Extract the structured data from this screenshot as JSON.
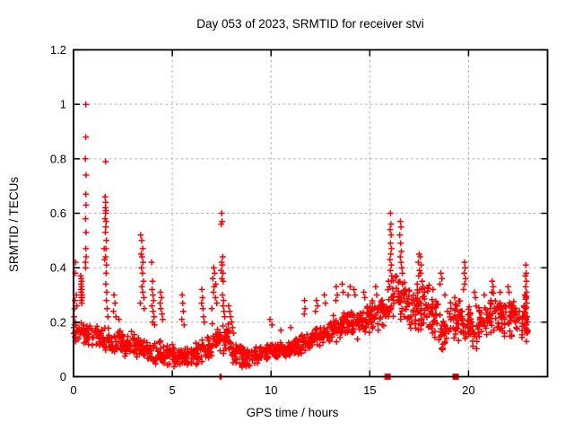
{
  "window": {
    "background": "#ffffff"
  },
  "chart_data": {
    "type": "scatter",
    "title": "Day 053 of 2023, SRMTID for receiver stvi",
    "xlabel": "GPS time / hours",
    "ylabel": "SRMTID / TECUs",
    "xlim": [
      0,
      24
    ],
    "ylim": [
      0,
      1.2
    ],
    "xticks": [
      0,
      5,
      10,
      15,
      20
    ],
    "xtick_labels": [
      "0",
      "5",
      "10",
      "15",
      "20"
    ],
    "yticks": [
      0,
      0.2,
      0.4,
      0.6,
      0.8,
      1,
      1.2
    ],
    "ytick_labels": [
      "0",
      "0.2",
      "0.4",
      "0.6",
      "0.8",
      "1",
      "1.2"
    ],
    "grid": true,
    "legend": false,
    "marker": "plus",
    "colors": {
      "marker": "#ff0000",
      "grid": "#aaaaaa",
      "axis": "#000000",
      "text": "#000000"
    },
    "feature_points": [
      [
        0.62,
        1.0
      ],
      [
        0.62,
        0.88
      ],
      [
        0.6,
        0.8
      ],
      [
        0.63,
        0.74
      ],
      [
        0.62,
        0.67
      ],
      [
        0.63,
        0.63
      ],
      [
        0.61,
        0.58
      ],
      [
        0.63,
        0.53
      ],
      [
        0.62,
        0.47
      ],
      [
        0.64,
        0.44
      ],
      [
        0.6,
        0.42
      ],
      [
        0.61,
        0.4
      ],
      [
        0.1,
        0.42
      ],
      [
        0.09,
        0.38
      ],
      [
        0.14,
        0.3
      ],
      [
        0.07,
        0.28
      ],
      [
        0.05,
        0.25
      ],
      [
        0.17,
        0.26
      ],
      [
        0.03,
        0.22
      ],
      [
        0.02,
        0.18
      ],
      [
        0.04,
        0.16
      ],
      [
        0.36,
        0.37
      ],
      [
        0.39,
        0.36
      ],
      [
        0.41,
        0.35
      ],
      [
        0.38,
        0.34
      ],
      [
        0.4,
        0.33
      ],
      [
        0.42,
        0.32
      ],
      [
        0.37,
        0.32
      ],
      [
        0.39,
        0.31
      ],
      [
        0.41,
        0.3
      ],
      [
        0.43,
        0.3
      ],
      [
        0.38,
        0.29
      ],
      [
        0.4,
        0.28
      ],
      [
        0.42,
        0.27
      ],
      [
        0.44,
        0.29
      ],
      [
        1.62,
        0.79
      ],
      [
        1.6,
        0.66
      ],
      [
        1.63,
        0.64
      ],
      [
        1.61,
        0.62
      ],
      [
        1.64,
        0.61
      ],
      [
        1.62,
        0.6
      ],
      [
        1.6,
        0.58
      ],
      [
        1.65,
        0.57
      ],
      [
        1.63,
        0.55
      ],
      [
        1.61,
        0.53
      ],
      [
        1.66,
        0.5
      ],
      [
        1.64,
        0.47
      ],
      [
        1.62,
        0.44
      ],
      [
        1.67,
        0.41
      ],
      [
        1.65,
        0.38
      ],
      [
        1.63,
        0.34
      ],
      [
        1.68,
        0.31
      ],
      [
        1.66,
        0.28
      ],
      [
        1.7,
        0.25
      ],
      [
        1.74,
        0.22
      ],
      [
        1.55,
        0.47
      ],
      [
        1.57,
        0.43
      ],
      [
        2.05,
        0.3
      ],
      [
        2.1,
        0.27
      ],
      [
        2.02,
        0.24
      ],
      [
        2.15,
        0.22
      ],
      [
        2.3,
        0.21
      ],
      [
        3.4,
        0.52
      ],
      [
        3.45,
        0.5
      ],
      [
        3.5,
        0.47
      ],
      [
        3.42,
        0.45
      ],
      [
        3.47,
        0.44
      ],
      [
        3.52,
        0.42
      ],
      [
        3.44,
        0.4
      ],
      [
        3.49,
        0.38
      ],
      [
        3.54,
        0.35
      ],
      [
        3.46,
        0.33
      ],
      [
        3.51,
        0.31
      ],
      [
        3.56,
        0.29
      ],
      [
        3.38,
        0.27
      ],
      [
        3.58,
        0.25
      ],
      [
        3.95,
        0.42
      ],
      [
        4.0,
        0.35
      ],
      [
        3.98,
        0.32
      ],
      [
        4.02,
        0.3
      ],
      [
        4.05,
        0.28
      ],
      [
        3.97,
        0.26
      ],
      [
        4.03,
        0.24
      ],
      [
        4.08,
        0.22
      ],
      [
        4.0,
        0.2
      ],
      [
        4.1,
        0.19
      ],
      [
        4.4,
        0.31
      ],
      [
        4.45,
        0.29
      ],
      [
        4.38,
        0.27
      ],
      [
        4.42,
        0.25
      ],
      [
        4.48,
        0.23
      ],
      [
        4.52,
        0.21
      ],
      [
        5.5,
        0.3
      ],
      [
        5.53,
        0.27
      ],
      [
        5.56,
        0.24
      ],
      [
        5.48,
        0.21
      ],
      [
        5.6,
        0.19
      ],
      [
        6.5,
        0.32
      ],
      [
        6.53,
        0.29
      ],
      [
        6.48,
        0.27
      ],
      [
        6.55,
        0.25
      ],
      [
        6.58,
        0.22
      ],
      [
        6.62,
        0.2
      ],
      [
        7.1,
        0.4
      ],
      [
        7.15,
        0.38
      ],
      [
        7.05,
        0.36
      ],
      [
        7.2,
        0.34
      ],
      [
        7.12,
        0.33
      ],
      [
        7.08,
        0.31
      ],
      [
        7.18,
        0.29
      ],
      [
        7.25,
        0.27
      ],
      [
        7.0,
        0.25
      ],
      [
        7.5,
        0.6
      ],
      [
        7.52,
        0.57
      ],
      [
        7.48,
        0.56
      ],
      [
        7.55,
        0.44
      ],
      [
        7.5,
        0.42
      ],
      [
        7.53,
        0.41
      ],
      [
        7.47,
        0.39
      ],
      [
        7.56,
        0.38
      ],
      [
        7.51,
        0.36
      ],
      [
        7.58,
        0.35
      ],
      [
        7.54,
        0.3
      ],
      [
        7.6,
        0.28
      ],
      [
        7.57,
        0.26
      ],
      [
        7.62,
        0.24
      ],
      [
        7.65,
        0.22
      ],
      [
        7.42,
        0.0
      ],
      [
        7.47,
        0.0
      ],
      [
        7.85,
        0.26
      ],
      [
        7.9,
        0.24
      ],
      [
        7.95,
        0.22
      ],
      [
        8.0,
        0.2
      ],
      [
        8.05,
        0.18
      ],
      [
        8.1,
        0.16
      ],
      [
        9.95,
        0.21
      ],
      [
        10.05,
        0.19
      ],
      [
        10.5,
        0.17
      ],
      [
        11.0,
        0.18
      ],
      [
        11.7,
        0.28
      ],
      [
        11.72,
        0.25
      ],
      [
        11.68,
        0.23
      ],
      [
        12.3,
        0.28
      ],
      [
        12.35,
        0.26
      ],
      [
        12.25,
        0.24
      ],
      [
        12.7,
        0.3
      ],
      [
        12.75,
        0.27
      ],
      [
        13.3,
        0.33
      ],
      [
        13.35,
        0.3
      ],
      [
        13.28,
        0.28
      ],
      [
        13.6,
        0.34
      ],
      [
        13.65,
        0.31
      ],
      [
        13.9,
        0.3
      ],
      [
        14.0,
        0.33
      ],
      [
        14.2,
        0.32
      ],
      [
        14.25,
        0.3
      ],
      [
        14.7,
        0.31
      ],
      [
        14.75,
        0.29
      ],
      [
        15.3,
        0.33
      ],
      [
        15.35,
        0.3
      ],
      [
        16.05,
        0.6
      ],
      [
        16.07,
        0.56
      ],
      [
        16.03,
        0.54
      ],
      [
        16.08,
        0.52
      ],
      [
        16.05,
        0.49
      ],
      [
        16.1,
        0.47
      ],
      [
        16.06,
        0.45
      ],
      [
        16.02,
        0.43
      ],
      [
        16.09,
        0.41
      ],
      [
        16.04,
        0.39
      ],
      [
        16.11,
        0.37
      ],
      [
        15.95,
        0.35
      ],
      [
        16.0,
        0.33
      ],
      [
        16.55,
        0.57
      ],
      [
        16.58,
        0.55
      ],
      [
        16.52,
        0.52
      ],
      [
        16.56,
        0.49
      ],
      [
        16.6,
        0.46
      ],
      [
        16.54,
        0.44
      ],
      [
        16.58,
        0.42
      ],
      [
        16.62,
        0.4
      ],
      [
        16.65,
        0.38
      ],
      [
        17.5,
        0.45
      ],
      [
        17.55,
        0.44
      ],
      [
        17.45,
        0.42
      ],
      [
        17.6,
        0.41
      ],
      [
        17.52,
        0.39
      ],
      [
        17.58,
        0.38
      ],
      [
        17.48,
        0.37
      ],
      [
        17.65,
        0.35
      ],
      [
        17.7,
        0.33
      ],
      [
        17.4,
        0.34
      ],
      [
        18.2,
        0.32
      ],
      [
        18.6,
        0.38
      ],
      [
        18.65,
        0.36
      ],
      [
        18.55,
        0.34
      ],
      [
        18.8,
        0.3
      ],
      [
        19.3,
        0.29
      ],
      [
        19.8,
        0.42
      ],
      [
        19.82,
        0.4
      ],
      [
        19.78,
        0.38
      ],
      [
        19.85,
        0.36
      ],
      [
        19.8,
        0.34
      ],
      [
        19.75,
        0.32
      ],
      [
        20.3,
        0.31
      ],
      [
        20.35,
        0.29
      ],
      [
        20.8,
        0.3
      ],
      [
        21.2,
        0.35
      ],
      [
        21.25,
        0.33
      ],
      [
        21.18,
        0.31
      ],
      [
        21.6,
        0.31
      ],
      [
        22.0,
        0.33
      ],
      [
        22.05,
        0.31
      ],
      [
        22.9,
        0.41
      ],
      [
        22.92,
        0.38
      ],
      [
        22.88,
        0.37
      ],
      [
        22.93,
        0.35
      ],
      [
        22.89,
        0.33
      ],
      [
        22.94,
        0.31
      ],
      [
        22.91,
        0.29
      ],
      [
        22.95,
        0.27
      ],
      [
        22.9,
        0.25
      ],
      [
        22.96,
        0.22
      ],
      [
        22.92,
        0.19
      ],
      [
        22.97,
        0.16
      ],
      [
        22.93,
        0.13
      ],
      [
        22.85,
        0.3
      ],
      [
        22.8,
        0.26
      ]
    ],
    "noise_bands": [
      [
        0.0,
        0.5,
        0.12,
        0.22,
        22
      ],
      [
        0.5,
        1.0,
        0.1,
        0.21,
        26
      ],
      [
        1.0,
        1.5,
        0.09,
        0.2,
        26
      ],
      [
        1.5,
        2.0,
        0.08,
        0.19,
        26
      ],
      [
        2.0,
        2.5,
        0.07,
        0.18,
        28
      ],
      [
        2.5,
        3.0,
        0.07,
        0.17,
        28
      ],
      [
        3.0,
        3.5,
        0.06,
        0.16,
        28
      ],
      [
        3.5,
        4.0,
        0.05,
        0.15,
        28
      ],
      [
        4.0,
        4.5,
        0.04,
        0.14,
        28
      ],
      [
        4.5,
        5.0,
        0.04,
        0.13,
        28
      ],
      [
        5.0,
        5.5,
        0.03,
        0.12,
        30
      ],
      [
        5.5,
        6.0,
        0.03,
        0.12,
        30
      ],
      [
        6.0,
        6.5,
        0.04,
        0.13,
        30
      ],
      [
        6.5,
        7.0,
        0.05,
        0.15,
        30
      ],
      [
        7.0,
        7.5,
        0.07,
        0.2,
        28
      ],
      [
        7.5,
        8.0,
        0.07,
        0.2,
        28
      ],
      [
        8.0,
        8.5,
        0.04,
        0.13,
        30
      ],
      [
        8.5,
        9.0,
        0.03,
        0.11,
        30
      ],
      [
        9.0,
        9.5,
        0.04,
        0.12,
        30
      ],
      [
        9.5,
        10.0,
        0.05,
        0.13,
        30
      ],
      [
        10.0,
        10.5,
        0.05,
        0.13,
        30
      ],
      [
        10.5,
        11.0,
        0.06,
        0.14,
        30
      ],
      [
        11.0,
        11.5,
        0.07,
        0.15,
        30
      ],
      [
        11.5,
        12.0,
        0.08,
        0.17,
        30
      ],
      [
        12.0,
        12.5,
        0.1,
        0.19,
        30
      ],
      [
        12.5,
        13.0,
        0.11,
        0.21,
        30
      ],
      [
        13.0,
        13.5,
        0.12,
        0.23,
        30
      ],
      [
        13.5,
        14.0,
        0.13,
        0.25,
        30
      ],
      [
        14.0,
        14.5,
        0.13,
        0.26,
        30
      ],
      [
        14.5,
        15.0,
        0.14,
        0.27,
        30
      ],
      [
        15.0,
        15.5,
        0.15,
        0.29,
        28
      ],
      [
        15.5,
        16.0,
        0.17,
        0.33,
        28
      ],
      [
        16.0,
        16.5,
        0.2,
        0.4,
        32
      ],
      [
        16.5,
        17.0,
        0.18,
        0.38,
        32
      ],
      [
        17.0,
        17.5,
        0.16,
        0.36,
        32
      ],
      [
        17.5,
        18.0,
        0.15,
        0.35,
        32
      ],
      [
        18.0,
        18.5,
        0.12,
        0.3,
        30
      ],
      [
        18.5,
        19.0,
        0.08,
        0.28,
        30
      ],
      [
        19.0,
        19.5,
        0.12,
        0.28,
        30
      ],
      [
        19.5,
        20.0,
        0.12,
        0.29,
        30
      ],
      [
        20.0,
        20.5,
        0.1,
        0.28,
        30
      ],
      [
        20.5,
        21.0,
        0.13,
        0.3,
        30
      ],
      [
        21.0,
        21.5,
        0.14,
        0.32,
        30
      ],
      [
        21.5,
        22.0,
        0.13,
        0.3,
        30
      ],
      [
        22.0,
        22.5,
        0.13,
        0.31,
        30
      ],
      [
        22.5,
        23.0,
        0.12,
        0.32,
        30
      ]
    ],
    "zero_squares": [
      [
        15.9,
        0
      ],
      [
        19.35,
        0
      ]
    ]
  }
}
